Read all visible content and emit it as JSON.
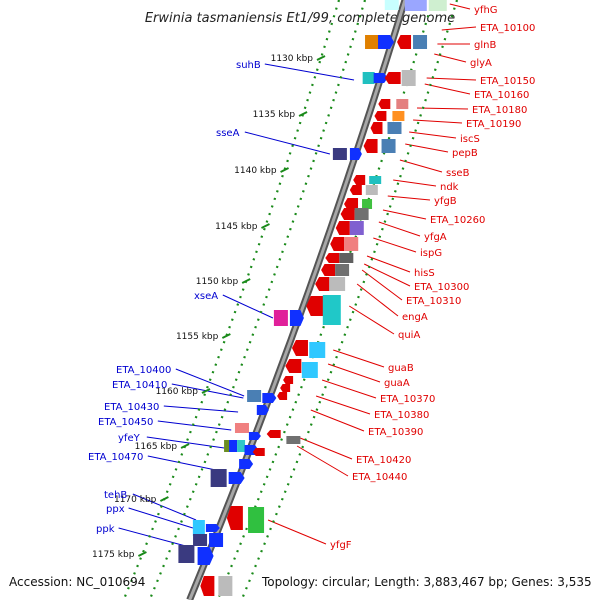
{
  "title": "Erwinia tasmaniensis Et1/99, complete genome",
  "footer": {
    "accession": "Accession: NC_010694",
    "summary": "Topology: circular; Length: 3,883,467 bp; Genes: 3,535"
  },
  "colors": {
    "right_label": "#e00000",
    "left_label": "#0000d0",
    "backbone": "#8a8a8a",
    "tick": "#1a8a1a"
  },
  "ticks": [
    "1130 kbp",
    "1135 kbp",
    "1140 kbp",
    "1145 kbp",
    "1150 kbp",
    "1155 kbp",
    "1160 kbp",
    "1165 kbp",
    "1170 kbp",
    "1175 kbp"
  ],
  "right_labels": [
    "yfhG",
    "ETA_10100",
    "glnB",
    "glyA",
    "ETA_10150",
    "ETA_10160",
    "ETA_10180",
    "ETA_10190",
    "iscS",
    "pepB",
    "sseB",
    "ndk",
    "yfgB",
    "ETA_10260",
    "yfgA",
    "ispG",
    "hisS",
    "ETA_10300",
    "ETA_10310",
    "engA",
    "quiA",
    "guaB",
    "guaA",
    "ETA_10370",
    "ETA_10380",
    "ETA_10390",
    "ETA_10420",
    "ETA_10440",
    "yfgF"
  ],
  "left_labels": [
    "suhB",
    "sseA",
    "xseA",
    "ETA_10400",
    "ETA_10410",
    "ETA_10430",
    "ETA_10450",
    "yfeY",
    "ETA_10470",
    "tehB",
    "ppx",
    "ppk"
  ]
}
